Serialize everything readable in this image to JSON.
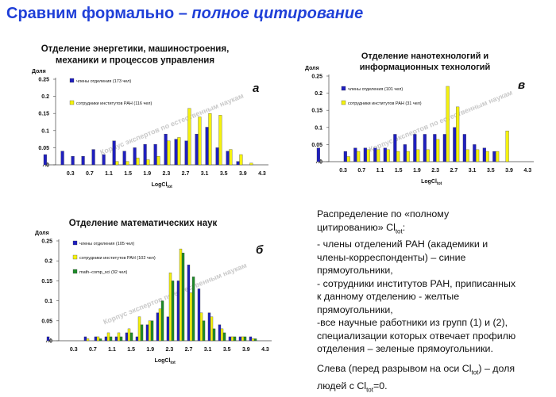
{
  "slide": {
    "title_main": "Сравним формально – ",
    "title_italic": "полное цитирование"
  },
  "watermark": "Корпус экспертов по естественным наукам",
  "colors": {
    "blue": "#1f1fbf",
    "yellow": "#f5f20f",
    "green": "#1e8c2a",
    "title": "#1f3fd8"
  },
  "chart_data": [
    {
      "type": "bar",
      "title_lines": [
        "Отделение энергетики, машиностроения,",
        "механики и процессов управления"
      ],
      "panel_label": "а",
      "ylabel": "Доля",
      "xlabel": "LogCl",
      "xlabel_sub": "tot",
      "yticks": [
        "0.25",
        "0.2",
        "0.15",
        "0.1",
        "0.05",
        "0"
      ],
      "ylim": [
        0,
        0.25
      ],
      "xticks": [
        "0.3",
        "0.7",
        "1.1",
        "1.5",
        "1.9",
        "2.3",
        "2.7",
        "3.1",
        "3.5",
        "3.9",
        "4.3"
      ],
      "series": [
        {
          "name": "члены отделения (173 чел)",
          "color": "blue",
          "first": 0.03,
          "values": [
            0.04,
            0.025,
            0.025,
            0.045,
            0.03,
            0.07,
            0.04,
            0.05,
            0.06,
            0.06,
            0.09,
            0.075,
            0.07,
            0.09,
            0.11,
            0.05,
            0.04,
            0.01,
            0,
            0
          ]
        },
        {
          "name": "сотрудники институтов РАН (116 чел)",
          "color": "yellow",
          "first": 0,
          "values": [
            0,
            0,
            0,
            0,
            0,
            0.01,
            0.01,
            0.02,
            0.015,
            0.025,
            0.07,
            0.08,
            0.165,
            0.14,
            0.15,
            0.145,
            0.045,
            0.03,
            0.005,
            0
          ]
        }
      ]
    },
    {
      "type": "bar",
      "title_lines": [
        "Отделение нанотехнологий и",
        "информационных технологий"
      ],
      "panel_label": "в",
      "ylabel": "Доля",
      "xlabel": "LogCl",
      "xlabel_sub": "tot",
      "yticks": [
        "0.25",
        "0.2",
        "0.15",
        "0.1",
        "0.05",
        "0"
      ],
      "ylim": [
        0,
        0.25
      ],
      "xticks": [
        "0.3",
        "0.7",
        "1.1",
        "1.5",
        "1.9",
        "2.3",
        "2.7",
        "3.1",
        "3.5",
        "3.9",
        "4.3"
      ],
      "series": [
        {
          "name": "члены отделения (101 чел)",
          "color": "blue",
          "first": 0.04,
          "values": [
            0,
            0.03,
            0.04,
            0.04,
            0.04,
            0.04,
            0.08,
            0.05,
            0.08,
            0.08,
            0.08,
            0.08,
            0.1,
            0.08,
            0.05,
            0.04,
            0.03,
            0,
            0,
            0
          ]
        },
        {
          "name": "сотрудники институтов РАН (31 чел)",
          "color": "yellow",
          "first": 0,
          "values": [
            0,
            0.015,
            0.03,
            0.035,
            0.035,
            0.035,
            0.03,
            0.03,
            0.035,
            0.035,
            0.065,
            0.22,
            0.16,
            0.035,
            0.035,
            0.03,
            0.03,
            0.09,
            0,
            0
          ]
        }
      ]
    },
    {
      "type": "bar",
      "title_lines": [
        "Отделение математических наук"
      ],
      "panel_label": "б",
      "ylabel": "Доля",
      "xlabel": "LogCl",
      "xlabel_sub": "tot",
      "yticks": [
        "0.25",
        "0.2",
        "0.15",
        "0.1",
        "0.05",
        "0"
      ],
      "ylim": [
        0,
        0.25
      ],
      "xticks": [
        "0.3",
        "0.7",
        "1.1",
        "1.5",
        "1.9",
        "2.3",
        "2.7",
        "3.1",
        "3.5",
        "3.9",
        "4.3"
      ],
      "series": [
        {
          "name": "члены отделения (105 чел)",
          "color": "blue",
          "first": 0.01,
          "values": [
            0,
            0,
            0.01,
            0.01,
            0.01,
            0.01,
            0.02,
            0.01,
            0.04,
            0.07,
            0.06,
            0.15,
            0.19,
            0.13,
            0.07,
            0.04,
            0.01,
            0.01,
            0.01,
            0
          ]
        },
        {
          "name": "сотрудники институтов РАН (102 чел)",
          "color": "yellow",
          "first": 0,
          "values": [
            0,
            0,
            0.005,
            0.01,
            0.02,
            0.02,
            0.03,
            0.06,
            0.05,
            0.08,
            0.17,
            0.23,
            0.12,
            0.07,
            0.06,
            0.03,
            0.01,
            0.01,
            0.005,
            0
          ]
        },
        {
          "name": "math–comp_sci (92 чел)",
          "color": "green",
          "first": 0,
          "values": [
            0,
            0,
            0,
            0.005,
            0.01,
            0.01,
            0.02,
            0.04,
            0.05,
            0.1,
            0.15,
            0.22,
            0.16,
            0.05,
            0.03,
            0.02,
            0.01,
            0.01,
            0.005,
            0
          ]
        }
      ]
    }
  ],
  "notes": {
    "l1": "Распределение по «полному",
    "l2_a": "цитированию» Cl",
    "l2_sub": "tot",
    "l2_b": ":",
    "l3": "- члены отделений РАН (академики и",
    "l4": "члены-корреспонденты) – синие",
    "l5": "прямоугольники,",
    "l6": "- сотрудники институтов РАН, приписанных",
    "l7": "к данному отделению - желтые",
    "l8": "прямоугольники,",
    "l9": "-все научные работники из групп (1) и (2),",
    "l10": "специализации которых отвечает профилю",
    "l11": "отделения – зеленые прямоугольники.",
    "l12_a": "Слева (перед разрывом на оси Cl",
    "l12_sub": "tot",
    "l12_b": ") – доля",
    "l13_a": "людей с Cl",
    "l13_sub": "tot",
    "l13_b": "=0."
  }
}
